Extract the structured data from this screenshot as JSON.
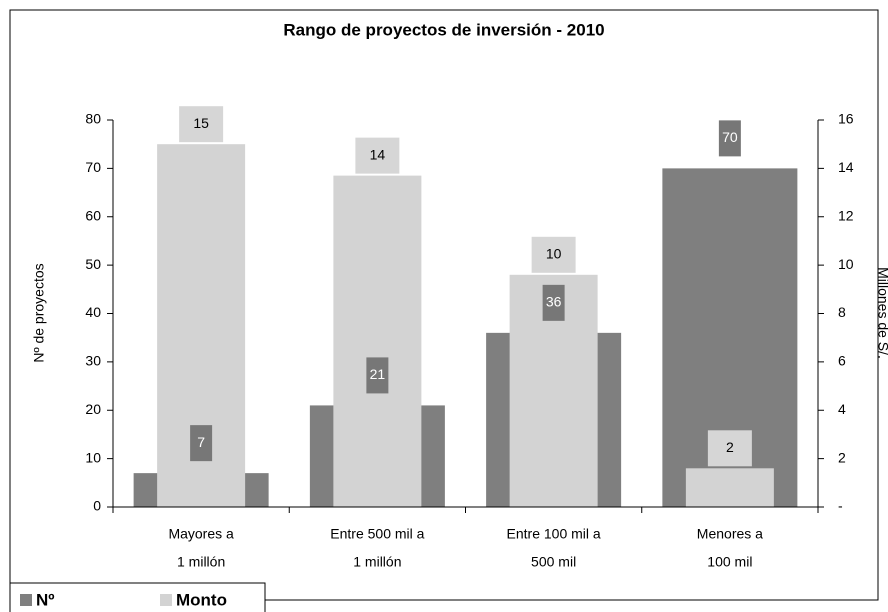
{
  "chart_data": {
    "type": "bar",
    "title": "Rango de proyectos de inversión - 2010",
    "y_label": "Nº de proyectos",
    "y2_label": "Millones de S/.",
    "categories": [
      [
        "Mayores a",
        "1 millón"
      ],
      [
        "Entre 500 mil a",
        "1 millón"
      ],
      [
        "Entre 100 mil a",
        "500 mil"
      ],
      [
        "Menores a",
        "100 mil"
      ]
    ],
    "series": [
      {
        "name": "Nº",
        "color": "#7f7f7f",
        "values": [
          7,
          21,
          36,
          70
        ]
      },
      {
        "name": "Monto",
        "color": "#d3d3d3",
        "axis": "y2",
        "values": [
          15.0,
          13.7,
          9.6,
          1.6
        ],
        "value_labels": [
          "15",
          "14",
          "10",
          "2"
        ]
      }
    ],
    "ylim": [
      0,
      80
    ],
    "yticks": [
      0,
      10,
      20,
      30,
      40,
      50,
      60,
      70,
      80
    ],
    "y2lim": [
      0,
      16
    ],
    "y2ticks": [
      {
        "value": 0,
        "label": "-"
      },
      2,
      4,
      6,
      8,
      10,
      12,
      14,
      16
    ],
    "legend": "bottom-left"
  }
}
